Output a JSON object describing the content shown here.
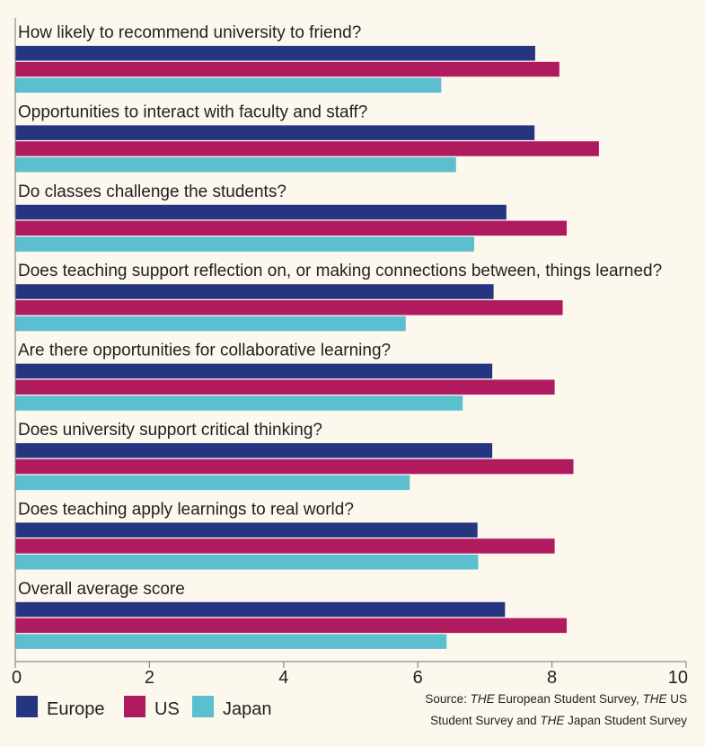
{
  "chart_data": {
    "type": "bar",
    "orientation": "horizontal",
    "categories": [
      "How likely to recommend university to friend?",
      "Opportunities to interact with faculty and staff?",
      "Do classes challenge the students?",
      "Does teaching support reflection on, or making connections between, things learned?",
      "Are there opportunities for collaborative learning?",
      "Does university support critical thinking?",
      "Does teaching apply learnings to real world?",
      "Overall average score"
    ],
    "series": [
      {
        "name": "Europe",
        "color": "#263580",
        "values": [
          7.75,
          7.74,
          7.32,
          7.13,
          7.11,
          7.11,
          6.89,
          7.3
        ]
      },
      {
        "name": "US",
        "color": "#b01a5e",
        "values": [
          8.11,
          8.7,
          8.22,
          8.16,
          8.04,
          8.32,
          8.04,
          8.22
        ]
      },
      {
        "name": "Japan",
        "color": "#5bbfcf",
        "values": [
          6.35,
          6.57,
          6.84,
          5.82,
          6.67,
          5.88,
          6.9,
          6.43
        ]
      }
    ],
    "xlim": [
      0,
      10
    ],
    "xticks": [
      "0",
      "2",
      "4",
      "6",
      "8",
      "10"
    ],
    "grid": false,
    "legend_position": "bottom-left",
    "source": {
      "line1": "Source: THE European Student Survey, THE US",
      "line2": "Student Survey and THE Japan Student Survey"
    }
  },
  "background": "#fdf8ee"
}
